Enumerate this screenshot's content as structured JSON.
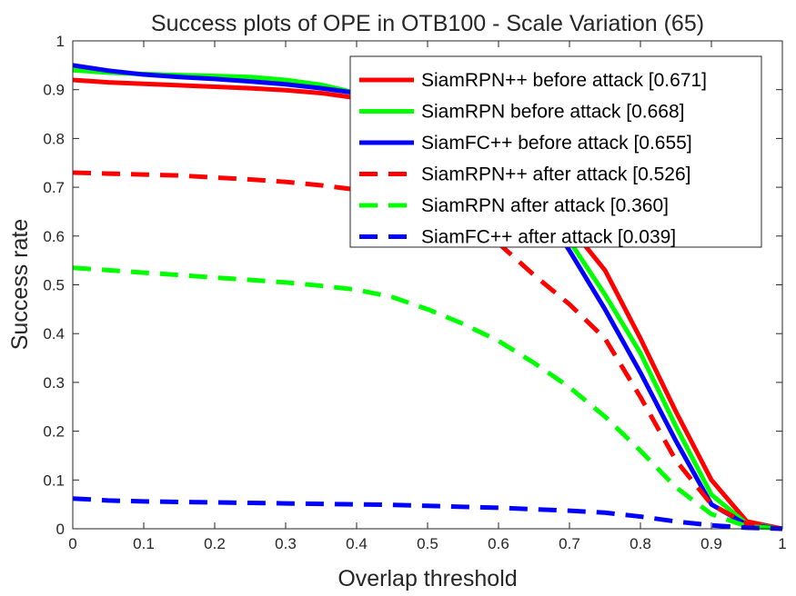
{
  "chart_data": {
    "type": "line",
    "title": "Success plots of OPE in OTB100 - Scale Variation (65)",
    "xlabel": "Overlap threshold",
    "ylabel": "Success rate",
    "xlim": [
      0,
      1
    ],
    "ylim": [
      0,
      1
    ],
    "grid": false,
    "legend_position": "top-right",
    "x_ticks": [
      "0",
      "0.1",
      "0.2",
      "0.3",
      "0.4",
      "0.5",
      "0.6",
      "0.7",
      "0.8",
      "0.9",
      "1"
    ],
    "y_ticks": [
      "0",
      "0.1",
      "0.2",
      "0.3",
      "0.4",
      "0.5",
      "0.6",
      "0.7",
      "0.8",
      "0.9",
      "1"
    ],
    "x": [
      0,
      0.05,
      0.1,
      0.15,
      0.2,
      0.25,
      0.3,
      0.35,
      0.4,
      0.45,
      0.5,
      0.55,
      0.6,
      0.65,
      0.7,
      0.75,
      0.8,
      0.85,
      0.9,
      0.95,
      1.0
    ],
    "series": [
      {
        "name": "SiamRPN++ before attack [0.671]",
        "color": "#ff0000",
        "dash": "solid",
        "values": [
          0.92,
          0.915,
          0.912,
          0.909,
          0.906,
          0.903,
          0.899,
          0.893,
          0.883,
          0.868,
          0.847,
          0.815,
          0.77,
          0.7,
          0.62,
          0.53,
          0.39,
          0.24,
          0.1,
          0.015,
          0.0
        ]
      },
      {
        "name": "SiamRPN before attack [0.668]",
        "color": "#00ff00",
        "dash": "solid",
        "values": [
          0.94,
          0.935,
          0.932,
          0.93,
          0.928,
          0.926,
          0.92,
          0.91,
          0.893,
          0.875,
          0.852,
          0.82,
          0.77,
          0.69,
          0.59,
          0.48,
          0.36,
          0.21,
          0.07,
          0.01,
          0.0
        ]
      },
      {
        "name": "SiamFC++ before attack [0.655]",
        "color": "#0000ff",
        "dash": "solid",
        "values": [
          0.95,
          0.939,
          0.931,
          0.926,
          0.922,
          0.917,
          0.911,
          0.903,
          0.893,
          0.873,
          0.848,
          0.812,
          0.76,
          0.68,
          0.57,
          0.45,
          0.32,
          0.18,
          0.05,
          0.008,
          0.0
        ]
      },
      {
        "name": "SiamRPN++ after attack [0.526]",
        "color": "#ff0000",
        "dash": "dashed",
        "values": [
          0.73,
          0.728,
          0.726,
          0.724,
          0.72,
          0.716,
          0.711,
          0.704,
          0.695,
          0.682,
          0.66,
          0.63,
          0.585,
          0.52,
          0.46,
          0.39,
          0.27,
          0.14,
          0.05,
          0.01,
          0.0
        ]
      },
      {
        "name": "SiamRPN after attack [0.360]",
        "color": "#00ff00",
        "dash": "dashed",
        "values": [
          0.535,
          0.53,
          0.525,
          0.52,
          0.515,
          0.51,
          0.505,
          0.498,
          0.49,
          0.475,
          0.45,
          0.42,
          0.385,
          0.34,
          0.29,
          0.23,
          0.16,
          0.085,
          0.03,
          0.005,
          0.0
        ]
      },
      {
        "name": "SiamFC++ after attack [0.039]",
        "color": "#0000ff",
        "dash": "dashed",
        "values": [
          0.062,
          0.058,
          0.056,
          0.055,
          0.054,
          0.053,
          0.052,
          0.051,
          0.05,
          0.049,
          0.047,
          0.045,
          0.043,
          0.04,
          0.037,
          0.033,
          0.025,
          0.015,
          0.007,
          0.002,
          0.0
        ]
      }
    ]
  }
}
